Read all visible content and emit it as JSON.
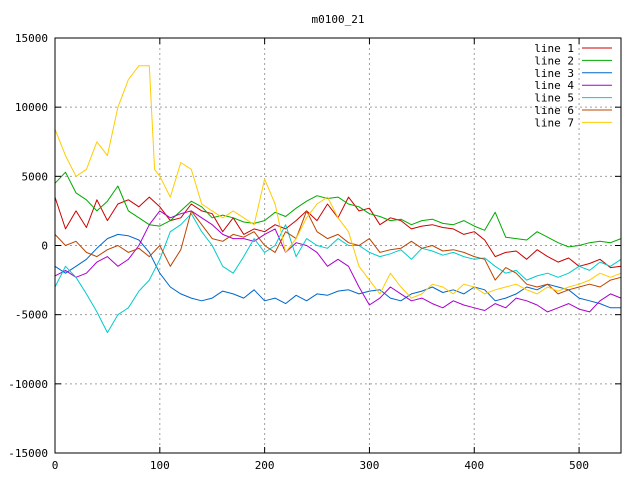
{
  "chart_data": {
    "type": "line",
    "title": "m0100_21",
    "xlabel": "",
    "ylabel": "",
    "xlim": [
      0,
      540
    ],
    "ylim": [
      -15000,
      15000
    ],
    "xticks": [
      0,
      100,
      200,
      300,
      400,
      500
    ],
    "yticks": [
      -15000,
      -10000,
      -5000,
      0,
      5000,
      10000,
      15000
    ],
    "grid": true,
    "legend_position": "top-right",
    "series": [
      {
        "name": "line 1",
        "color": "#cc0000",
        "x": [
          0,
          10,
          20,
          30,
          40,
          50,
          60,
          70,
          80,
          90,
          100,
          110,
          120,
          130,
          140,
          150,
          160,
          170,
          180,
          190,
          200,
          210,
          220,
          230,
          240,
          250,
          260,
          270,
          280,
          290,
          300,
          310,
          320,
          330,
          340,
          350,
          360,
          370,
          380,
          390,
          400,
          410,
          420,
          430,
          440,
          450,
          460,
          470,
          480,
          490,
          500,
          510,
          520,
          530,
          540
        ],
        "y": [
          3500,
          1200,
          2500,
          1300,
          3300,
          1800,
          3000,
          3300,
          2800,
          3500,
          2800,
          1800,
          2000,
          3000,
          2500,
          2300,
          1000,
          2000,
          800,
          1200,
          1000,
          1500,
          1200,
          1800,
          2500,
          1800,
          3000,
          2000,
          3500,
          2500,
          2700,
          1500,
          2000,
          1800,
          1200,
          1400,
          1500,
          1300,
          1200,
          800,
          1000,
          400,
          -800,
          -500,
          -400,
          -1000,
          -300,
          -800,
          -1200,
          -900,
          -1500,
          -1300,
          -1000,
          -1600,
          -1500
        ]
      },
      {
        "name": "line 2",
        "color": "#00aa00",
        "x": [
          0,
          10,
          20,
          30,
          40,
          50,
          60,
          70,
          80,
          90,
          100,
          110,
          120,
          130,
          140,
          150,
          160,
          170,
          180,
          190,
          200,
          210,
          220,
          230,
          240,
          250,
          260,
          270,
          280,
          290,
          300,
          310,
          320,
          330,
          340,
          350,
          360,
          370,
          380,
          390,
          400,
          410,
          420,
          430,
          440,
          450,
          460,
          470,
          480,
          490,
          500,
          510,
          520,
          530,
          540
        ],
        "y": [
          4500,
          5300,
          3800,
          3300,
          2500,
          3200,
          4300,
          2500,
          2000,
          1500,
          1400,
          1800,
          2500,
          3200,
          2800,
          2000,
          2200,
          2000,
          1700,
          1600,
          1800,
          2400,
          2100,
          2700,
          3200,
          3600,
          3400,
          3500,
          3000,
          2800,
          2300,
          2100,
          1800,
          1900,
          1500,
          1800,
          1900,
          1600,
          1500,
          1800,
          1400,
          1100,
          2400,
          600,
          500,
          400,
          1000,
          600,
          200,
          -100,
          0,
          200,
          300,
          200,
          500
        ]
      },
      {
        "name": "line 3",
        "color": "#0066cc",
        "x": [
          0,
          10,
          20,
          30,
          40,
          50,
          60,
          70,
          80,
          90,
          100,
          110,
          120,
          130,
          140,
          150,
          160,
          170,
          180,
          190,
          200,
          210,
          220,
          230,
          240,
          250,
          260,
          270,
          280,
          290,
          300,
          310,
          320,
          330,
          340,
          350,
          360,
          370,
          380,
          390,
          400,
          410,
          420,
          430,
          440,
          450,
          460,
          470,
          480,
          490,
          500,
          510,
          520,
          530,
          540
        ],
        "y": [
          -1500,
          -2000,
          -1500,
          -1000,
          -200,
          500,
          800,
          700,
          400,
          -500,
          -2000,
          -3000,
          -3500,
          -3800,
          -4000,
          -3800,
          -3300,
          -3500,
          -3800,
          -3200,
          -4000,
          -3800,
          -4200,
          -3600,
          -4000,
          -3500,
          -3600,
          -3300,
          -3200,
          -3500,
          -3300,
          -3200,
          -3800,
          -4000,
          -3500,
          -3300,
          -3000,
          -3400,
          -3200,
          -3500,
          -3000,
          -3200,
          -4000,
          -3800,
          -3500,
          -3000,
          -3200,
          -2800,
          -3000,
          -3200,
          -3800,
          -4000,
          -4200,
          -4500,
          -4500
        ]
      },
      {
        "name": "line 4",
        "color": "#aa00cc",
        "x": [
          0,
          10,
          20,
          30,
          40,
          50,
          60,
          70,
          80,
          90,
          100,
          110,
          120,
          130,
          140,
          150,
          160,
          170,
          180,
          190,
          200,
          210,
          220,
          230,
          240,
          250,
          260,
          270,
          280,
          290,
          300,
          310,
          320,
          330,
          340,
          350,
          360,
          370,
          380,
          390,
          400,
          410,
          420,
          430,
          440,
          450,
          460,
          470,
          480,
          490,
          500,
          510,
          520,
          530,
          540
        ],
        "y": [
          -2200,
          -1800,
          -2300,
          -2000,
          -1200,
          -800,
          -1500,
          -1000,
          0,
          1500,
          2500,
          2000,
          2300,
          2500,
          2000,
          1500,
          800,
          500,
          500,
          300,
          800,
          1200,
          -500,
          200,
          0,
          -500,
          -1500,
          -1000,
          -1500,
          -3000,
          -4300,
          -3800,
          -3000,
          -3500,
          -4000,
          -3800,
          -4200,
          -4500,
          -4000,
          -4300,
          -4500,
          -4700,
          -4200,
          -4500,
          -3800,
          -4000,
          -4300,
          -4800,
          -4500,
          -4200,
          -4600,
          -4800,
          -4000,
          -3500,
          -3800
        ]
      },
      {
        "name": "line 5",
        "color": "#00cccc",
        "x": [
          0,
          10,
          20,
          30,
          40,
          50,
          60,
          70,
          80,
          90,
          100,
          110,
          120,
          130,
          140,
          150,
          160,
          170,
          180,
          190,
          200,
          210,
          220,
          230,
          240,
          250,
          260,
          270,
          280,
          290,
          300,
          310,
          320,
          330,
          340,
          350,
          360,
          370,
          380,
          390,
          400,
          410,
          420,
          430,
          440,
          450,
          460,
          470,
          480,
          490,
          500,
          510,
          520,
          530,
          540
        ],
        "y": [
          -3000,
          -1500,
          -2300,
          -3500,
          -4800,
          -6300,
          -5000,
          -4500,
          -3300,
          -2500,
          -1000,
          1000,
          1500,
          2300,
          1000,
          0,
          -1500,
          -2000,
          -800,
          500,
          -500,
          0,
          1500,
          -800,
          500,
          0,
          -200,
          500,
          0,
          0,
          -500,
          -800,
          -600,
          -300,
          -1000,
          -200,
          -400,
          -700,
          -500,
          -800,
          -1000,
          -900,
          -1500,
          -2000,
          -1800,
          -2500,
          -2200,
          -2000,
          -2300,
          -2000,
          -1500,
          -1800,
          -1200,
          -1500,
          -1000
        ]
      },
      {
        "name": "line 6",
        "color": "#bb4400",
        "x": [
          0,
          10,
          20,
          30,
          40,
          50,
          60,
          70,
          80,
          90,
          100,
          110,
          120,
          130,
          140,
          150,
          160,
          170,
          180,
          190,
          200,
          210,
          220,
          230,
          240,
          250,
          260,
          270,
          280,
          290,
          300,
          310,
          320,
          330,
          340,
          350,
          360,
          370,
          380,
          390,
          400,
          410,
          420,
          430,
          440,
          450,
          460,
          470,
          480,
          490,
          500,
          510,
          520,
          530,
          540
        ],
        "y": [
          800,
          0,
          300,
          -500,
          -800,
          -300,
          0,
          -500,
          -200,
          -800,
          0,
          -1500,
          -300,
          2500,
          1500,
          500,
          300,
          800,
          600,
          1000,
          0,
          -500,
          1000,
          500,
          2500,
          1000,
          500,
          800,
          200,
          0,
          500,
          -500,
          -300,
          -200,
          300,
          -200,
          0,
          -400,
          -300,
          -500,
          -800,
          -1000,
          -2500,
          -1600,
          -2000,
          -2800,
          -3000,
          -2800,
          -3500,
          -3200,
          -3000,
          -2800,
          -3000,
          -2500,
          -2300
        ]
      },
      {
        "name": "line 7",
        "color": "#ffcc00",
        "x": [
          0,
          10,
          20,
          30,
          40,
          50,
          60,
          70,
          80,
          90,
          95,
          100,
          110,
          120,
          130,
          140,
          150,
          160,
          170,
          180,
          190,
          200,
          210,
          220,
          230,
          240,
          250,
          260,
          270,
          280,
          290,
          300,
          310,
          320,
          330,
          340,
          350,
          360,
          370,
          380,
          390,
          400,
          410,
          420,
          430,
          440,
          450,
          460,
          470,
          480,
          490,
          500,
          510,
          520,
          530,
          540
        ],
        "y": [
          8400,
          6500,
          5000,
          5500,
          7500,
          6500,
          10000,
          12000,
          13000,
          13000,
          5500,
          5000,
          3500,
          6000,
          5500,
          3000,
          2500,
          2000,
          2500,
          2000,
          1500,
          4800,
          3000,
          -500,
          500,
          2000,
          3000,
          3500,
          2000,
          1000,
          -1500,
          -2500,
          -3500,
          -2000,
          -3000,
          -3800,
          -3500,
          -2800,
          -3000,
          -3500,
          -2800,
          -3000,
          -3500,
          -3200,
          -3000,
          -2800,
          -3200,
          -3500,
          -3000,
          -3300,
          -3000,
          -2800,
          -2500,
          -2000,
          -2300,
          -2000
        ]
      }
    ]
  }
}
